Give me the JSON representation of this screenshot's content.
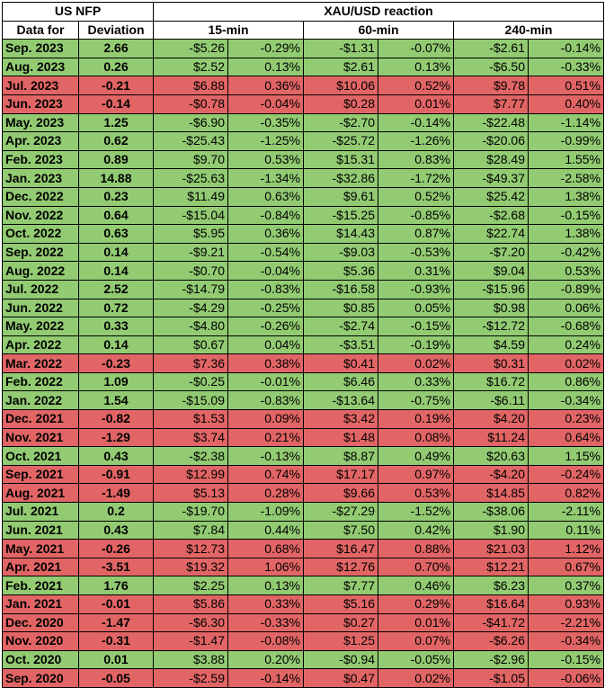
{
  "header": {
    "group_left": "US NFP",
    "group_right": "XAU/USD reaction",
    "col_date": "Data for",
    "col_dev": "Deviation",
    "col_15": "15-min",
    "col_60": "60-min",
    "col_240": "240-min"
  },
  "colors": {
    "positive": "#92cb72",
    "negative": "#e26565"
  },
  "rows": [
    {
      "date": "Sep. 2023",
      "dev": "2.66",
      "m15": "-$5.26",
      "p15": "-0.29%",
      "m60": "-$1.31",
      "p60": "-0.07%",
      "m240": "-$2.61",
      "p240": "-0.14%",
      "tone": "pos"
    },
    {
      "date": "Aug. 2023",
      "dev": "0.26",
      "m15": "$2.52",
      "p15": "0.13%",
      "m60": "$2.61",
      "p60": "0.13%",
      "m240": "-$6.50",
      "p240": "-0.33%",
      "tone": "pos"
    },
    {
      "date": "Jul. 2023",
      "dev": "-0.21",
      "m15": "$6.88",
      "p15": "0.36%",
      "m60": "$10.06",
      "p60": "0.52%",
      "m240": "$9.78",
      "p240": "0.51%",
      "tone": "neg"
    },
    {
      "date": "Jun. 2023",
      "dev": "-0.14",
      "m15": "-$0.78",
      "p15": "-0.04%",
      "m60": "$0.28",
      "p60": "0.01%",
      "m240": "$7.77",
      "p240": "0.40%",
      "tone": "neg"
    },
    {
      "date": "May. 2023",
      "dev": "1.25",
      "m15": "-$6.90",
      "p15": "-0.35%",
      "m60": "-$2.70",
      "p60": "-0.14%",
      "m240": "-$22.48",
      "p240": "-1.14%",
      "tone": "pos"
    },
    {
      "date": "Apr. 2023",
      "dev": "0.62",
      "m15": "-$25.43",
      "p15": "-1.25%",
      "m60": "-$25.72",
      "p60": "-1.26%",
      "m240": "-$20.06",
      "p240": "-0.99%",
      "tone": "pos"
    },
    {
      "date": "Feb. 2023",
      "dev": "0.89",
      "m15": "$9.70",
      "p15": "0.53%",
      "m60": "$15.31",
      "p60": "0.83%",
      "m240": "$28.49",
      "p240": "1.55%",
      "tone": "pos"
    },
    {
      "date": "Jan. 2023",
      "dev": "14.88",
      "m15": "-$25.63",
      "p15": "-1.34%",
      "m60": "-$32.86",
      "p60": "-1.72%",
      "m240": "-$49.37",
      "p240": "-2.58%",
      "tone": "pos"
    },
    {
      "date": "Dec. 2022",
      "dev": "0.23",
      "m15": "$11.49",
      "p15": "0.63%",
      "m60": "$9.61",
      "p60": "0.52%",
      "m240": "$25.42",
      "p240": "1.38%",
      "tone": "pos"
    },
    {
      "date": "Nov. 2022",
      "dev": "0.64",
      "m15": "-$15.04",
      "p15": "-0.84%",
      "m60": "-$15.25",
      "p60": "-0.85%",
      "m240": "-$2.68",
      "p240": "-0.15%",
      "tone": "pos"
    },
    {
      "date": "Oct. 2022",
      "dev": "0.63",
      "m15": "$5.95",
      "p15": "0.36%",
      "m60": "$14.43",
      "p60": "0.87%",
      "m240": "$22.74",
      "p240": "1.38%",
      "tone": "pos"
    },
    {
      "date": "Sep. 2022",
      "dev": "0.14",
      "m15": "-$9.21",
      "p15": "-0.54%",
      "m60": "-$9.03",
      "p60": "-0.53%",
      "m240": "-$7.20",
      "p240": "-0.42%",
      "tone": "pos"
    },
    {
      "date": "Aug. 2022",
      "dev": "0.14",
      "m15": "-$0.70",
      "p15": "-0.04%",
      "m60": "$5.36",
      "p60": "0.31%",
      "m240": "$9.04",
      "p240": "0.53%",
      "tone": "pos"
    },
    {
      "date": "Jul. 2022",
      "dev": "2.52",
      "m15": "-$14.79",
      "p15": "-0.83%",
      "m60": "-$16.58",
      "p60": "-0.93%",
      "m240": "-$15.96",
      "p240": "-0.89%",
      "tone": "pos"
    },
    {
      "date": "Jun. 2022",
      "dev": "0.72",
      "m15": "-$4.29",
      "p15": "-0.25%",
      "m60": "$0.85",
      "p60": "0.05%",
      "m240": "$0.98",
      "p240": "0.06%",
      "tone": "pos"
    },
    {
      "date": "May. 2022",
      "dev": "0.33",
      "m15": "-$4.80",
      "p15": "-0.26%",
      "m60": "-$2.74",
      "p60": "-0.15%",
      "m240": "-$12.72",
      "p240": "-0.68%",
      "tone": "pos"
    },
    {
      "date": "Apr. 2022",
      "dev": "0.14",
      "m15": "$0.67",
      "p15": "0.04%",
      "m60": "-$3.51",
      "p60": "-0.19%",
      "m240": "$4.59",
      "p240": "0.24%",
      "tone": "pos"
    },
    {
      "date": "Mar. 2022",
      "dev": "-0.23",
      "m15": "$7.36",
      "p15": "0.38%",
      "m60": "$0.41",
      "p60": "0.02%",
      "m240": "$0.31",
      "p240": "0.02%",
      "tone": "neg"
    },
    {
      "date": "Feb. 2022",
      "dev": "1.09",
      "m15": "-$0.25",
      "p15": "-0.01%",
      "m60": "$6.46",
      "p60": "0.33%",
      "m240": "$16.72",
      "p240": "0.86%",
      "tone": "pos"
    },
    {
      "date": "Jan. 2022",
      "dev": "1.54",
      "m15": "-$15.09",
      "p15": "-0.83%",
      "m60": "-$13.64",
      "p60": "-0.75%",
      "m240": "-$6.11",
      "p240": "-0.34%",
      "tone": "pos"
    },
    {
      "date": "Dec. 2021",
      "dev": "-0.82",
      "m15": "$1.53",
      "p15": "0.09%",
      "m60": "$3.42",
      "p60": "0.19%",
      "m240": "$4.20",
      "p240": "0.23%",
      "tone": "neg"
    },
    {
      "date": "Nov. 2021",
      "dev": "-1.29",
      "m15": "$3.74",
      "p15": "0.21%",
      "m60": "$1.48",
      "p60": "0.08%",
      "m240": "$11.24",
      "p240": "0.64%",
      "tone": "neg"
    },
    {
      "date": "Oct. 2021",
      "dev": "0.43",
      "m15": "-$2.38",
      "p15": "-0.13%",
      "m60": "$8.87",
      "p60": "0.49%",
      "m240": "$20.63",
      "p240": "1.15%",
      "tone": "pos"
    },
    {
      "date": "Sep. 2021",
      "dev": "-0.91",
      "m15": "$12.99",
      "p15": "0.74%",
      "m60": "$17.17",
      "p60": "0.97%",
      "m240": "-$4.20",
      "p240": "-0.24%",
      "tone": "neg"
    },
    {
      "date": "Aug. 2021",
      "dev": "-1.49",
      "m15": "$5.13",
      "p15": "0.28%",
      "m60": "$9.66",
      "p60": "0.53%",
      "m240": "$14.85",
      "p240": "0.82%",
      "tone": "neg"
    },
    {
      "date": "Jul. 2021",
      "dev": "0.2",
      "m15": "-$19.70",
      "p15": "-1.09%",
      "m60": "-$27.29",
      "p60": "-1.52%",
      "m240": "-$38.06",
      "p240": "-2.11%",
      "tone": "pos"
    },
    {
      "date": "Jun. 2021",
      "dev": "0.43",
      "m15": "$7.84",
      "p15": "0.44%",
      "m60": "$7.50",
      "p60": "0.42%",
      "m240": "$1.90",
      "p240": "0.11%",
      "tone": "pos"
    },
    {
      "date": "May. 2021",
      "dev": "-0.26",
      "m15": "$12.73",
      "p15": "0.68%",
      "m60": "$16.47",
      "p60": "0.88%",
      "m240": "$21.03",
      "p240": "1.12%",
      "tone": "neg"
    },
    {
      "date": "Apr. 2021",
      "dev": "-3.51",
      "m15": "$19.32",
      "p15": "1.06%",
      "m60": "$12.76",
      "p60": "0.70%",
      "m240": "$12.21",
      "p240": "0.67%",
      "tone": "neg"
    },
    {
      "date": "Feb. 2021",
      "dev": "1.76",
      "m15": "$2.25",
      "p15": "0.13%",
      "m60": "$7.77",
      "p60": "0.46%",
      "m240": "$6.23",
      "p240": "0.37%",
      "tone": "pos"
    },
    {
      "date": "Jan. 2021",
      "dev": "-0.01",
      "m15": "$5.86",
      "p15": "0.33%",
      "m60": "$5.16",
      "p60": "0.29%",
      "m240": "$16.64",
      "p240": "0.93%",
      "tone": "neg"
    },
    {
      "date": "Dec. 2020",
      "dev": "-1.47",
      "m15": "-$6.30",
      "p15": "-0.33%",
      "m60": "$0.27",
      "p60": "0.01%",
      "m240": "-$41.72",
      "p240": "-2.21%",
      "tone": "neg"
    },
    {
      "date": "Nov. 2020",
      "dev": "-0.31",
      "m15": "-$1.47",
      "p15": "-0.08%",
      "m60": "$1.25",
      "p60": "0.07%",
      "m240": "-$6.26",
      "p240": "-0.34%",
      "tone": "neg"
    },
    {
      "date": "Oct. 2020",
      "dev": "0.01",
      "m15": "$3.88",
      "p15": "0.20%",
      "m60": "-$0.94",
      "p60": "-0.05%",
      "m240": "-$2.96",
      "p240": "-0.15%",
      "tone": "pos"
    },
    {
      "date": "Sep. 2020",
      "dev": "-0.05",
      "m15": "-$2.59",
      "p15": "-0.14%",
      "m60": "$0.47",
      "p60": "0.02%",
      "m240": "-$1.05",
      "p240": "-0.06%",
      "tone": "neg"
    }
  ]
}
